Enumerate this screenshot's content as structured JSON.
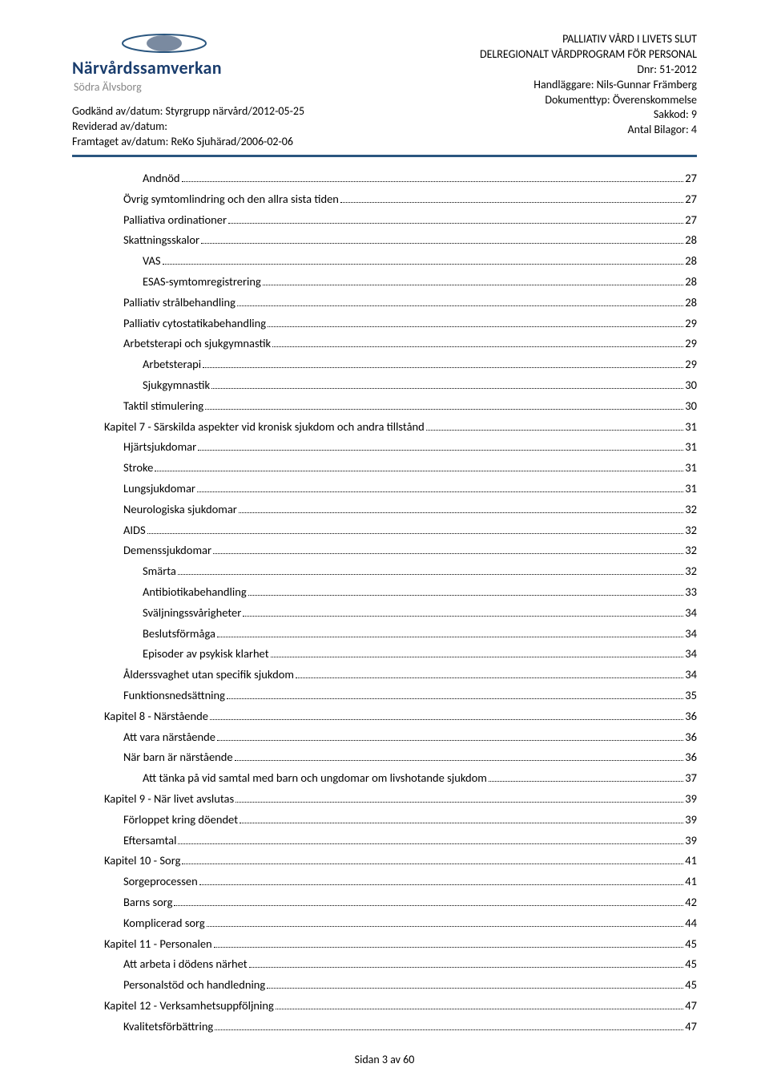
{
  "header": {
    "brand_name": "Närvårdssamverkan",
    "brand_sub": "Södra Älvsborg",
    "meta_left": [
      "Godkänd av/datum: Styrgrupp närvård/2012-05-25",
      "Reviderad av/datum:",
      "Framtaget av/datum: ReKo Sjuhärad/2006-02-06"
    ],
    "meta_right": [
      "PALLIATIV VÅRD I LIVETS SLUT",
      "DELREGIONALT VÅRDPROGRAM FÖR PERSONAL",
      "Dnr: 51-2012",
      "Handläggare: Nils-Gunnar Främberg",
      "Dokumenttyp: Överenskommelse",
      "Sakkod: 9",
      "Antal Bilagor: 4"
    ]
  },
  "colors": {
    "brand": "#1a3d6d",
    "eye_fill": "#7a8aa0",
    "eye_outline": "#2a567f",
    "divider": "#2a567f",
    "text": "#000000"
  },
  "toc": [
    {
      "label": "Andnöd",
      "page": "27",
      "indent": 2
    },
    {
      "label": "Övrig symtomlindring och den allra sista tiden",
      "page": "27",
      "indent": 1
    },
    {
      "label": "Palliativa ordinationer",
      "page": "27",
      "indent": 1
    },
    {
      "label": "Skattningsskalor",
      "page": "28",
      "indent": 1
    },
    {
      "label": "VAS",
      "page": "28",
      "indent": 2
    },
    {
      "label": "ESAS-symtomregistrering",
      "page": "28",
      "indent": 2
    },
    {
      "label": "Palliativ strålbehandling",
      "page": "28",
      "indent": 1
    },
    {
      "label": "Palliativ cytostatikabehandling",
      "page": "29",
      "indent": 1
    },
    {
      "label": "Arbetsterapi och sjukgymnastik",
      "page": "29",
      "indent": 1
    },
    {
      "label": "Arbetsterapi",
      "page": "29",
      "indent": 2
    },
    {
      "label": "Sjukgymnastik",
      "page": "30",
      "indent": 2
    },
    {
      "label": "Taktil stimulering",
      "page": "30",
      "indent": 1
    },
    {
      "label": "Kapitel 7  - Särskilda aspekter vid kronisk sjukdom och  andra tillstånd",
      "page": "31",
      "indent": 0
    },
    {
      "label": "Hjärtsjukdomar",
      "page": "31",
      "indent": 1
    },
    {
      "label": "Stroke",
      "page": "31",
      "indent": 1
    },
    {
      "label": "Lungsjukdomar",
      "page": "31",
      "indent": 1
    },
    {
      "label": "Neurologiska sjukdomar",
      "page": "32",
      "indent": 1
    },
    {
      "label": "AIDS",
      "page": "32",
      "indent": 1
    },
    {
      "label": "Demenssjukdomar",
      "page": "32",
      "indent": 1
    },
    {
      "label": "Smärta",
      "page": "32",
      "indent": 2
    },
    {
      "label": "Antibiotikabehandling",
      "page": "33",
      "indent": 2
    },
    {
      "label": "Sväljningssvårigheter",
      "page": "34",
      "indent": 2
    },
    {
      "label": "Beslutsförmåga",
      "page": "34",
      "indent": 2
    },
    {
      "label": "Episoder av psykisk klarhet",
      "page": "34",
      "indent": 2
    },
    {
      "label": "Ålderssvaghet utan specifik sjukdom",
      "page": "34",
      "indent": 1
    },
    {
      "label": "Funktionsnedsättning",
      "page": "35",
      "indent": 1
    },
    {
      "label": "Kapitel 8 - Närstående",
      "page": "36",
      "indent": 0
    },
    {
      "label": "Att vara närstående",
      "page": "36",
      "indent": 1
    },
    {
      "label": "När barn är närstående",
      "page": "36",
      "indent": 1
    },
    {
      "label": "Att tänka på vid samtal med barn och  ungdomar om livshotande sjukdom",
      "page": "37",
      "indent": 2
    },
    {
      "label": "Kapitel 9 - När livet avslutas",
      "page": "39",
      "indent": 0
    },
    {
      "label": "Förloppet kring döendet",
      "page": "39",
      "indent": 1
    },
    {
      "label": "Eftersamtal",
      "page": "39",
      "indent": 1
    },
    {
      "label": "Kapitel 10 - Sorg",
      "page": "41",
      "indent": 0
    },
    {
      "label": "Sorgeprocessen",
      "page": "41",
      "indent": 1
    },
    {
      "label": "Barns sorg",
      "page": "42",
      "indent": 1
    },
    {
      "label": "Komplicerad sorg",
      "page": "44",
      "indent": 1
    },
    {
      "label": "Kapitel 11 - Personalen",
      "page": "45",
      "indent": 0
    },
    {
      "label": "Att arbeta i dödens närhet",
      "page": "45",
      "indent": 1
    },
    {
      "label": "Personalstöd och handledning",
      "page": "45",
      "indent": 1
    },
    {
      "label": "Kapitel 12 - Verksamhetsuppföljning",
      "page": "47",
      "indent": 0
    },
    {
      "label": "Kvalitetsförbättring",
      "page": "47",
      "indent": 1
    }
  ],
  "footer": "Sidan 3 av 60"
}
